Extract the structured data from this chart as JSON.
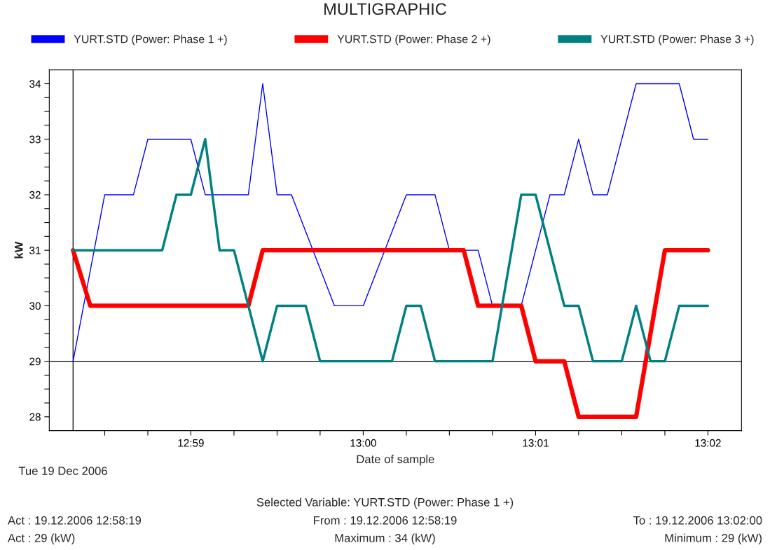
{
  "chart_data": {
    "type": "line",
    "title": "MULTIGRAPHIC",
    "xlabel": "Date of sample",
    "ylabel": "kW",
    "legend": "top",
    "grid": false,
    "marker": "none",
    "line_style": "solid",
    "xlim": [
      12.96964,
      13.03658
    ],
    "ylim": [
      27.75,
      34.25
    ],
    "xticks": [
      {
        "value": 12.975,
        "label": null
      },
      {
        "value": 12.97917,
        "label": null
      },
      {
        "value": 12.98333,
        "label": "12:59"
      },
      {
        "value": 12.9875,
        "label": null
      },
      {
        "value": 12.99167,
        "label": null
      },
      {
        "value": 12.99583,
        "label": null
      },
      {
        "value": 13.0,
        "label": "13:00"
      },
      {
        "value": 13.00417,
        "label": null
      },
      {
        "value": 13.00833,
        "label": null
      },
      {
        "value": 13.0125,
        "label": null
      },
      {
        "value": 13.01667,
        "label": "13:01"
      },
      {
        "value": 13.02083,
        "label": null
      },
      {
        "value": 13.025,
        "label": null
      },
      {
        "value": 13.02917,
        "label": null
      },
      {
        "value": 13.03333,
        "label": "13:02"
      }
    ],
    "yticks": [
      28,
      {
        "value": 28.25,
        "label": null
      },
      {
        "value": 28.5,
        "label": null
      },
      {
        "value": 28.75,
        "label": null
      },
      29,
      {
        "value": 29.25,
        "label": null
      },
      {
        "value": 29.5,
        "label": null
      },
      {
        "value": 29.75,
        "label": null
      },
      30,
      {
        "value": 30.25,
        "label": null
      },
      {
        "value": 30.5,
        "label": null
      },
      {
        "value": 30.75,
        "label": null
      },
      31,
      {
        "value": 31.25,
        "label": null
      },
      {
        "value": 31.5,
        "label": null
      },
      {
        "value": 31.75,
        "label": null
      },
      32,
      {
        "value": 32.25,
        "label": null
      },
      {
        "value": 32.5,
        "label": null
      },
      {
        "value": 32.75,
        "label": null
      },
      33,
      {
        "value": 33.25,
        "label": null
      },
      {
        "value": 33.5,
        "label": null
      },
      {
        "value": 33.75,
        "label": null
      },
      34
    ],
    "ref_lines": [
      {
        "axis": "x",
        "value": 12.97194,
        "color": "#000000"
      },
      {
        "axis": "y",
        "value": 29,
        "color": "#000000"
      }
    ],
    "series": [
      {
        "name": "YURT.STD (Power: Phase 1 +)",
        "color": "#0000ff",
        "x": [
          12.97194,
          12.975,
          12.97778,
          12.97917,
          12.98333,
          12.98472,
          12.98889,
          12.99028,
          12.99167,
          12.99306,
          12.99722,
          13.0,
          13.00417,
          13.00694,
          13.00833,
          13.01111,
          13.0125,
          13.01528,
          13.01806,
          13.01944,
          13.02083,
          13.02222,
          13.02361,
          13.02639,
          13.03056,
          13.03194,
          13.03333
        ],
        "values": [
          29,
          32,
          32,
          33,
          33,
          32,
          32,
          34,
          32,
          32,
          30,
          30,
          32,
          32,
          31,
          31,
          30,
          30,
          32,
          32,
          33,
          32,
          32,
          34,
          34,
          33,
          33
        ]
      },
      {
        "name": "YURT.STD (Power: Phase 2 +)",
        "color": "#ff0000",
        "x": [
          12.97194,
          12.97361,
          12.98889,
          12.99028,
          13.00972,
          13.01111,
          13.01528,
          13.01667,
          13.01944,
          13.02083,
          13.02639,
          13.02917,
          13.03333
        ],
        "values": [
          31,
          30,
          30,
          31,
          31,
          30,
          30,
          29,
          29,
          28,
          28,
          31,
          31
        ]
      },
      {
        "name": "YURT.STD (Power: Phase 3 +)",
        "color": "#008080",
        "x": [
          12.97194,
          12.98056,
          12.98194,
          12.98333,
          12.98472,
          12.98611,
          12.9875,
          12.99028,
          12.99167,
          12.99444,
          12.99583,
          13.00278,
          13.00417,
          13.00556,
          13.00694,
          13.0125,
          13.01528,
          13.01667,
          13.01944,
          13.02083,
          13.02222,
          13.025,
          13.02639,
          13.02778,
          13.02917,
          13.03056,
          13.03333
        ],
        "values": [
          31,
          31,
          32,
          32,
          33,
          31,
          31,
          29,
          30,
          30,
          29,
          29,
          30,
          30,
          29,
          29,
          32,
          32,
          30,
          30,
          29,
          29,
          30,
          29,
          29,
          30,
          30
        ]
      }
    ],
    "annotations": [
      "Tue 19 Dec 2006",
      "Selected Variable: YURT.STD (Power: Phase 1 +)",
      "Act : 19.12.2006 12:58:19",
      "From : 19.12.2006 12:58:19",
      "To : 19.12.2006 13:02:00",
      "Act : 29 (kW)",
      "Maximum : 34 (kW)",
      "Minimum : 29 (kW)"
    ]
  }
}
